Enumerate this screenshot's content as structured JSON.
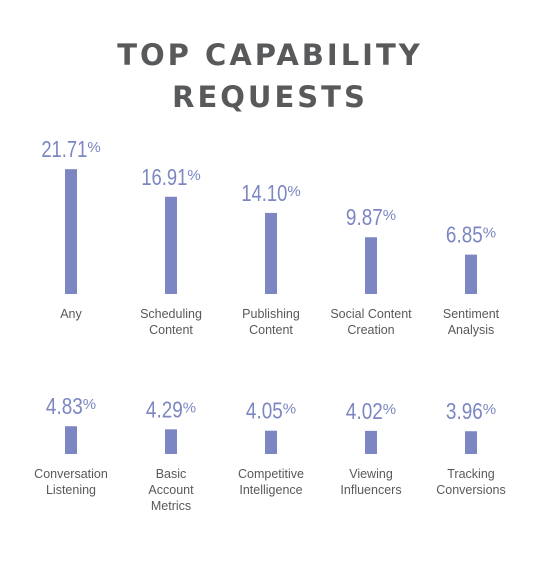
{
  "title": {
    "line1": "TOP CAPABILITY",
    "line2": "REQUESTS"
  },
  "colors": {
    "bar": "#7b86c2",
    "text": "#58595b",
    "background": "#ffffff"
  },
  "chart_data": [
    {
      "type": "bar",
      "title": "TOP CAPABILITY REQUESTS",
      "categories": [
        "Any",
        "Scheduling\nContent",
        "Publishing\nContent",
        "Social Content\nCreation",
        "Sentiment\nAnalysis"
      ],
      "values": [
        21.71,
        16.91,
        14.1,
        9.87,
        6.85
      ],
      "labels": [
        "21.71%",
        "16.91%",
        "14.10%",
        "9.87%",
        "6.85%"
      ],
      "unit": "%",
      "grid": false
    },
    {
      "type": "bar",
      "categories": [
        "Conversation\nListening",
        "Basic\nAccount\nMetrics",
        "Competitive\nIntelligence",
        "Viewing\nInfluencers",
        "Tracking\nConversions"
      ],
      "values": [
        4.83,
        4.29,
        4.05,
        4.02,
        3.96
      ],
      "labels": [
        "4.83%",
        "4.29%",
        "4.05%",
        "4.02%",
        "3.96%"
      ],
      "unit": "%",
      "grid": false
    }
  ]
}
